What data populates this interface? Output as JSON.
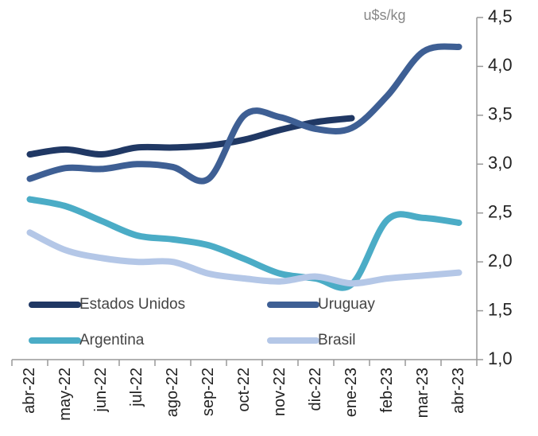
{
  "chart_data": {
    "type": "line",
    "unit_label": "u$s/kg",
    "categories": [
      "abr-22",
      "may-22",
      "jun-22",
      "jul-22",
      "ago-22",
      "sep-22",
      "oct-22",
      "nov-22",
      "dic-22",
      "ene-23",
      "feb-23",
      "mar-23",
      "abr-23"
    ],
    "series": [
      {
        "name": "Estados Unidos",
        "color": "#203864",
        "values": [
          3.1,
          3.15,
          3.1,
          3.17,
          3.17,
          3.19,
          3.25,
          3.35,
          3.43,
          3.47,
          null,
          null,
          null
        ]
      },
      {
        "name": "Uruguay",
        "color": "#3e5f94",
        "values": [
          2.85,
          2.96,
          2.95,
          3.0,
          2.97,
          2.85,
          3.5,
          3.48,
          3.36,
          3.37,
          3.7,
          4.15,
          4.2
        ]
      },
      {
        "name": "Argentina",
        "color": "#4bacc6",
        "values": [
          2.64,
          2.57,
          2.42,
          2.27,
          2.23,
          2.17,
          2.03,
          1.88,
          1.83,
          1.77,
          2.43,
          2.45,
          2.4
        ]
      },
      {
        "name": "Brasil",
        "color": "#b4c7e7",
        "values": [
          2.3,
          2.12,
          2.04,
          2.0,
          2.0,
          1.88,
          1.83,
          1.8,
          1.85,
          1.78,
          1.83,
          1.86,
          1.89
        ]
      }
    ],
    "ylim": [
      1.0,
      4.5
    ],
    "yticks": [
      {
        "value": 1.0,
        "label": "1,0"
      },
      {
        "value": 1.5,
        "label": "1,5"
      },
      {
        "value": 2.0,
        "label": "2,0"
      },
      {
        "value": 2.5,
        "label": "2,5"
      },
      {
        "value": 3.0,
        "label": "3,0"
      },
      {
        "value": 3.5,
        "label": "3,5"
      },
      {
        "value": 4.0,
        "label": "4,0"
      },
      {
        "value": 4.5,
        "label": "4,5"
      }
    ],
    "y_axis_side": "right",
    "grid": false
  }
}
